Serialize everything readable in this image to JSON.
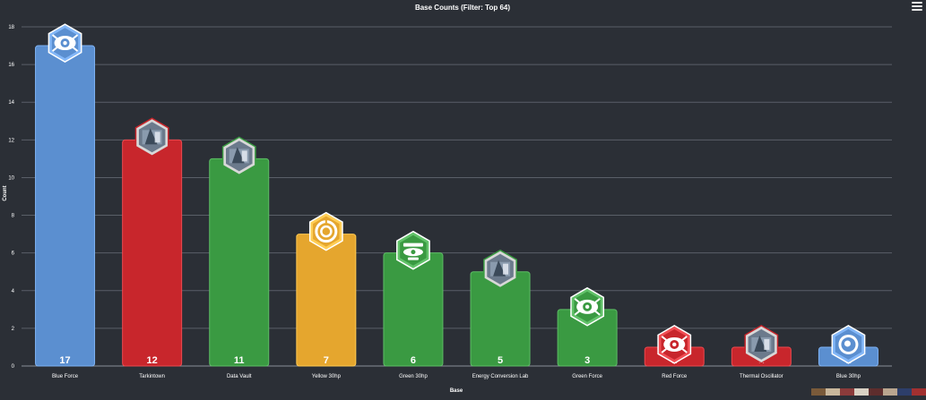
{
  "chart_data": {
    "type": "bar",
    "title": "Base Counts (Filter: Top 64)",
    "xlabel": "Base",
    "ylabel": "Count",
    "ylim": [
      0,
      18
    ],
    "yticks": [
      0,
      2,
      4,
      6,
      8,
      10,
      12,
      14,
      16,
      18
    ],
    "grid": true,
    "categories": [
      "Blue Force",
      "Tarkintown",
      "Data Vault",
      "Yellow 30hp",
      "Green 30hp",
      "Energy Conversion Lab",
      "Green Force",
      "Red Force",
      "Thermal Oscillator",
      "Blue 30hp"
    ],
    "values": [
      17,
      12,
      11,
      7,
      6,
      5,
      3,
      1,
      1,
      1
    ],
    "bar_colors": [
      "#5b8fd0",
      "#c8262c",
      "#3a9a42",
      "#e5a62e",
      "#3a9a42",
      "#3a9a42",
      "#3a9a42",
      "#c8262c",
      "#c8262c",
      "#5b8fd0"
    ],
    "badge_icons": [
      "force-eye-icon",
      "tarkintown-image-icon",
      "data-vault-image-icon",
      "yellow-30hp-icon",
      "green-30hp-icon",
      "energy-lab-image-icon",
      "force-eye-icon",
      "force-eye-icon",
      "thermal-oscillator-image-icon",
      "blue-30hp-icon"
    ]
  },
  "colors": {
    "background": "#2b2f36",
    "grid": "#5a5f68",
    "text": "#ffffff"
  },
  "toolbar": {
    "menu_icon": "hamburger-menu-icon"
  }
}
